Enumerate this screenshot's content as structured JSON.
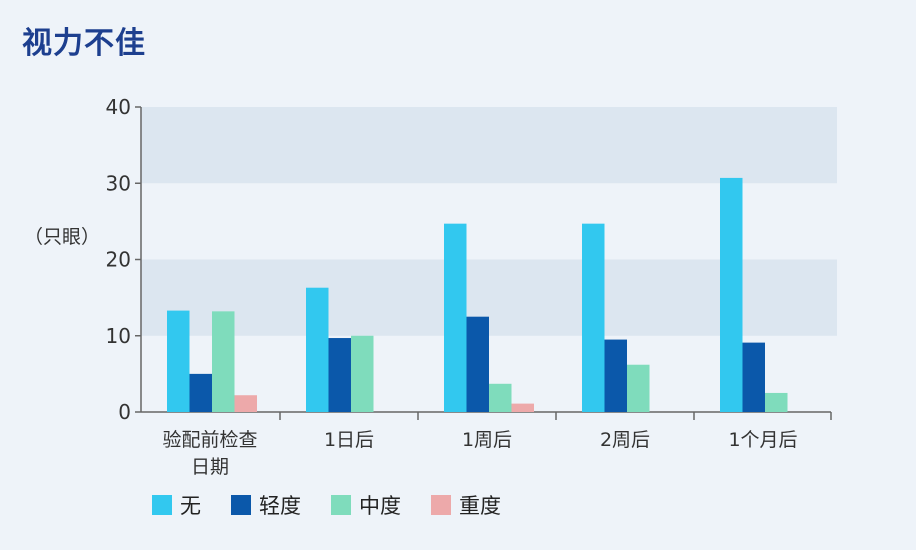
{
  "chart_data": {
    "type": "bar",
    "title": "视力不佳",
    "ylabel": "（只眼）",
    "xlabel": "",
    "ylim": [
      0,
      40
    ],
    "yticks": [
      0,
      10,
      20,
      30,
      40
    ],
    "grid": "alternating horizontal bands",
    "legend_position": "bottom",
    "categories": [
      [
        "验配前检查",
        "日期"
      ],
      [
        "1日后"
      ],
      [
        "1周后"
      ],
      [
        "2周后"
      ],
      [
        "1个月后"
      ]
    ],
    "series": [
      {
        "name": "无",
        "color": "#32c8ef",
        "values": [
          13.3,
          16.3,
          24.7,
          24.7,
          30.7
        ]
      },
      {
        "name": "轻度",
        "color": "#0b58aa",
        "values": [
          5.0,
          9.7,
          12.5,
          9.5,
          9.1
        ]
      },
      {
        "name": "中度",
        "color": "#7fdcbc",
        "values": [
          13.2,
          10.0,
          3.7,
          6.2,
          2.5
        ]
      },
      {
        "name": "重度",
        "color": "#eda9aa",
        "values": [
          2.2,
          0,
          1.1,
          0,
          0
        ]
      }
    ]
  }
}
